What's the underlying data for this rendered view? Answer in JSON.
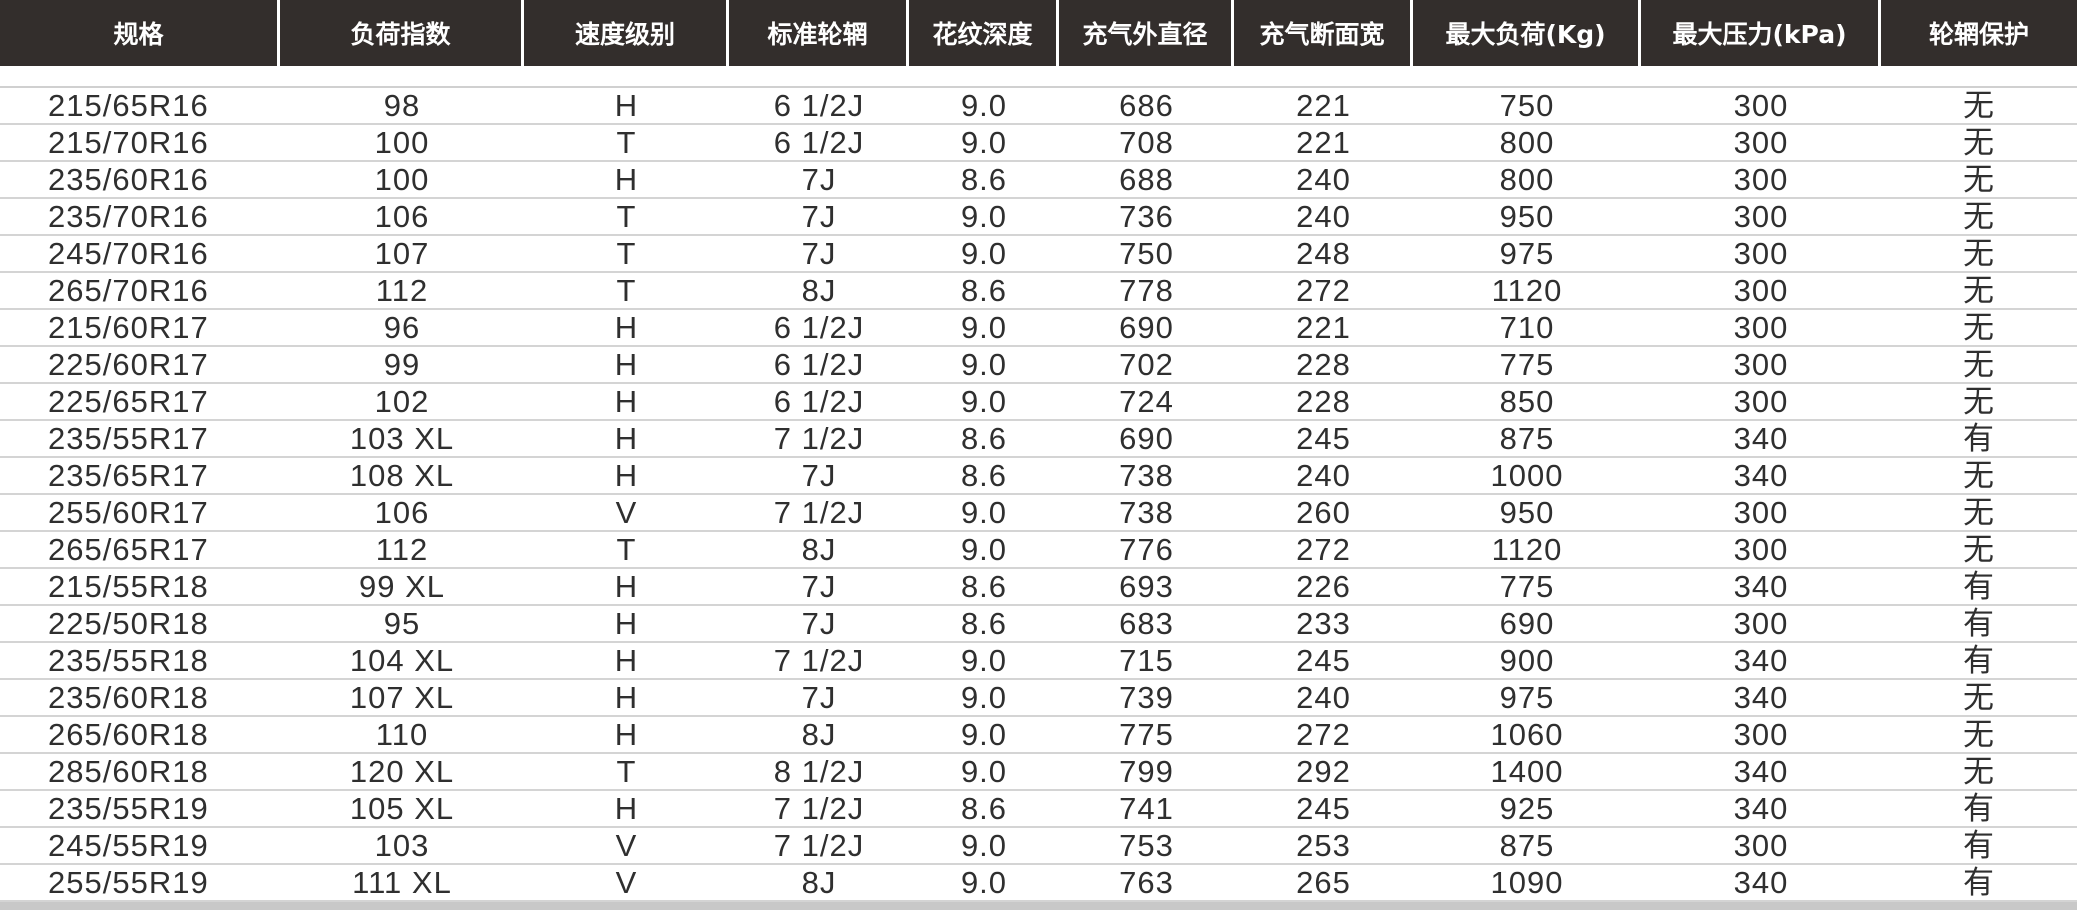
{
  "table": {
    "headers": [
      "规格",
      "负荷指数",
      "速度级别",
      "标准轮辋",
      "花纹深度",
      "充气外直径",
      "充气断面宽",
      "最大负荷(Kg)",
      "最大压力(kPa)",
      "轮辋保护"
    ],
    "rows": [
      [
        "215/65R16",
        "98",
        "H",
        "6 1/2J",
        "9.0",
        "686",
        "221",
        "750",
        "300",
        "无"
      ],
      [
        "215/70R16",
        "100",
        "T",
        "6 1/2J",
        "9.0",
        "708",
        "221",
        "800",
        "300",
        "无"
      ],
      [
        "235/60R16",
        "100",
        "H",
        "7J",
        "8.6",
        "688",
        "240",
        "800",
        "300",
        "无"
      ],
      [
        "235/70R16",
        "106",
        "T",
        "7J",
        "9.0",
        "736",
        "240",
        "950",
        "300",
        "无"
      ],
      [
        "245/70R16",
        "107",
        "T",
        "7J",
        "9.0",
        "750",
        "248",
        "975",
        "300",
        "无"
      ],
      [
        "265/70R16",
        "112",
        "T",
        "8J",
        "8.6",
        "778",
        "272",
        "1120",
        "300",
        "无"
      ],
      [
        "215/60R17",
        "96",
        "H",
        "6 1/2J",
        "9.0",
        "690",
        "221",
        "710",
        "300",
        "无"
      ],
      [
        "225/60R17",
        "99",
        "H",
        "6 1/2J",
        "9.0",
        "702",
        "228",
        "775",
        "300",
        "无"
      ],
      [
        "225/65R17",
        "102",
        "H",
        "6 1/2J",
        "9.0",
        "724",
        "228",
        "850",
        "300",
        "无"
      ],
      [
        "235/55R17",
        "103 XL",
        "H",
        "7 1/2J",
        "8.6",
        "690",
        "245",
        "875",
        "340",
        "有"
      ],
      [
        "235/65R17",
        "108 XL",
        "H",
        "7J",
        "8.6",
        "738",
        "240",
        "1000",
        "340",
        "无"
      ],
      [
        "255/60R17",
        "106",
        "V",
        "7 1/2J",
        "9.0",
        "738",
        "260",
        "950",
        "300",
        "无"
      ],
      [
        "265/65R17",
        "112",
        "T",
        "8J",
        "9.0",
        "776",
        "272",
        "1120",
        "300",
        "无"
      ],
      [
        "215/55R18",
        "99 XL",
        "H",
        "7J",
        "8.6",
        "693",
        "226",
        "775",
        "340",
        "有"
      ],
      [
        "225/50R18",
        "95",
        "H",
        "7J",
        "8.6",
        "683",
        "233",
        "690",
        "300",
        "有"
      ],
      [
        "235/55R18",
        "104 XL",
        "H",
        "7 1/2J",
        "9.0",
        "715",
        "245",
        "900",
        "340",
        "有"
      ],
      [
        "235/60R18",
        "107 XL",
        "H",
        "7J",
        "9.0",
        "739",
        "240",
        "975",
        "340",
        "无"
      ],
      [
        "265/60R18",
        "110",
        "H",
        "8J",
        "9.0",
        "775",
        "272",
        "1060",
        "300",
        "无"
      ],
      [
        "285/60R18",
        "120 XL",
        "T",
        "8 1/2J",
        "9.0",
        "799",
        "292",
        "1400",
        "340",
        "无"
      ],
      [
        "235/55R19",
        "105 XL",
        "H",
        "7 1/2J",
        "8.6",
        "741",
        "245",
        "925",
        "340",
        "有"
      ],
      [
        "245/55R19",
        "103",
        "V",
        "7 1/2J",
        "9.0",
        "753",
        "253",
        "875",
        "300",
        "有"
      ],
      [
        "255/55R19",
        "111 XL",
        "V",
        "8J",
        "9.0",
        "763",
        "265",
        "1090",
        "340",
        "有"
      ]
    ]
  },
  "colors": {
    "header_bg": "#332e2c",
    "header_text": "#ffffff",
    "row_divider": "#d4d4d4"
  }
}
